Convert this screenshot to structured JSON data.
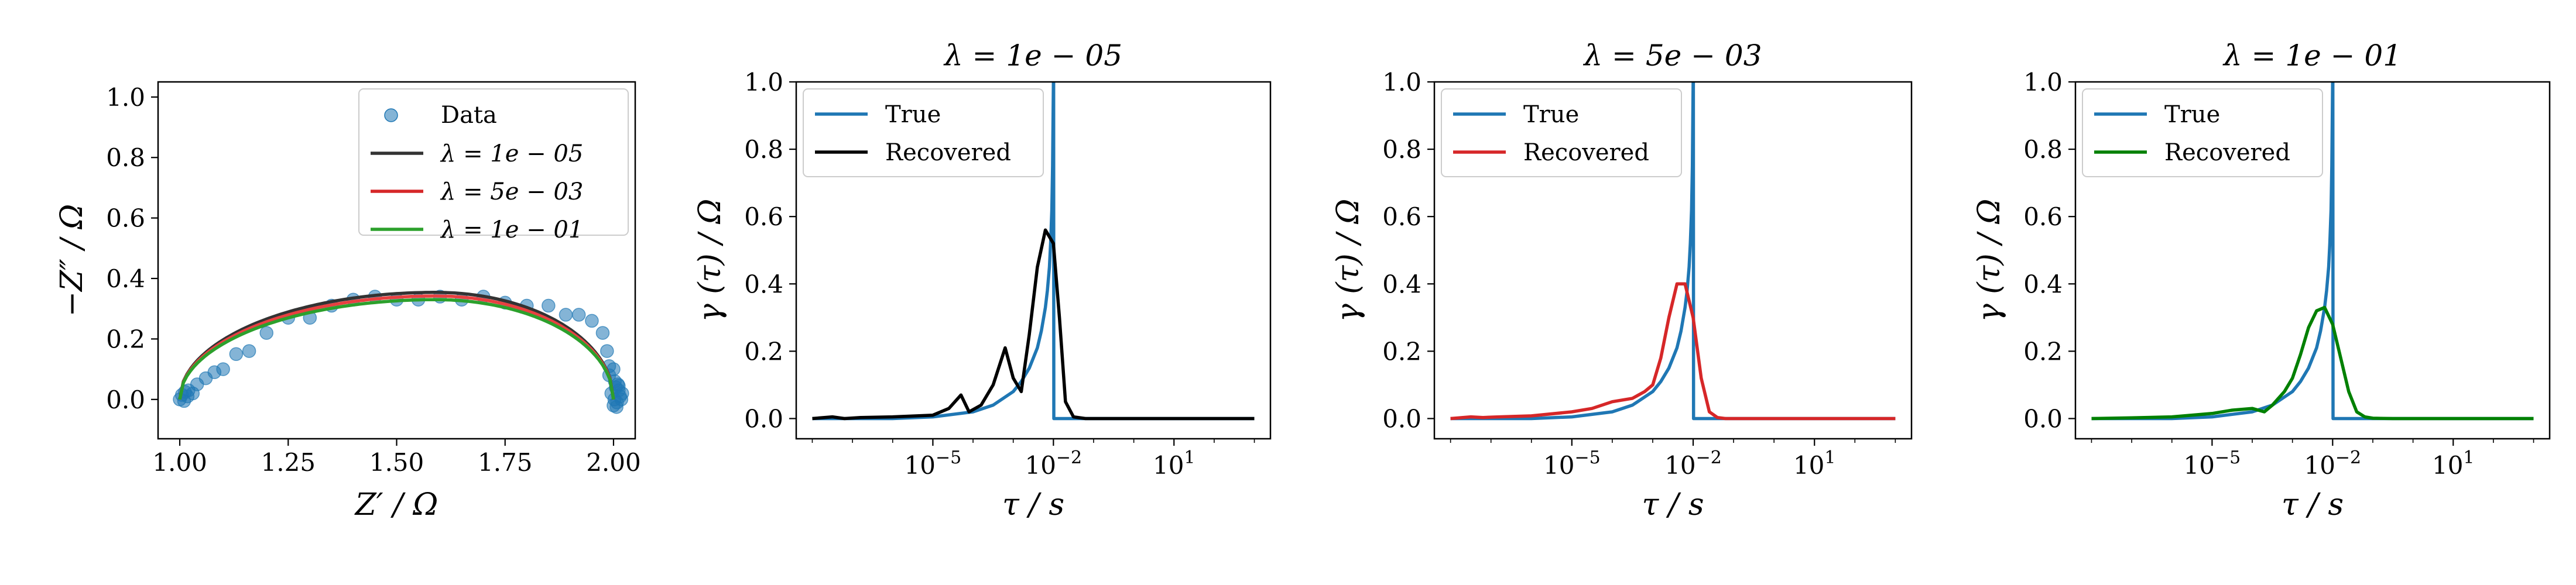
{
  "chart_data": [
    {
      "type": "scatter",
      "title": "",
      "xlabel": "Z′ / Ω",
      "ylabel": "−Z″ / Ω",
      "xlim": [
        0.95,
        2.05
      ],
      "ylim": [
        -0.13,
        1.05
      ],
      "xticks": [
        {
          "v": 1.0,
          "label": "1.00"
        },
        {
          "v": 1.25,
          "label": "1.25"
        },
        {
          "v": 1.5,
          "label": "1.50"
        },
        {
          "v": 1.75,
          "label": "1.75"
        },
        {
          "v": 2.0,
          "label": "2.00"
        }
      ],
      "yticks": [
        {
          "v": 0.0,
          "label": "0.0"
        },
        {
          "v": 0.2,
          "label": "0.2"
        },
        {
          "v": 0.4,
          "label": "0.4"
        },
        {
          "v": 0.6,
          "label": "0.6"
        },
        {
          "v": 0.8,
          "label": "0.8"
        },
        {
          "v": 1.0,
          "label": "1.0"
        }
      ],
      "legend_position": "top-right",
      "grid": false,
      "scatter": {
        "name": "Data",
        "color": "#1f77b4",
        "x": [
          1.0,
          1.005,
          1.01,
          1.012,
          1.018,
          1.02,
          1.03,
          1.04,
          1.06,
          1.08,
          1.1,
          1.13,
          1.16,
          1.2,
          1.25,
          1.3,
          1.35,
          1.4,
          1.45,
          1.5,
          1.55,
          1.6,
          1.65,
          1.7,
          1.75,
          1.8,
          1.85,
          1.89,
          1.92,
          1.95,
          1.975,
          1.985,
          1.99,
          1.995,
          2.0,
          2.002,
          2.005,
          2.008,
          2.01,
          2.012,
          2.015,
          2.018,
          2.02,
          2.0,
          1.99,
          2.003,
          2.007,
          2.012
        ],
        "y": [
          0.0,
          0.015,
          -0.005,
          0.025,
          0.01,
          0.03,
          0.02,
          0.05,
          0.07,
          0.09,
          0.1,
          0.15,
          0.16,
          0.22,
          0.27,
          0.27,
          0.31,
          0.33,
          0.34,
          0.33,
          0.33,
          0.34,
          0.33,
          0.34,
          0.32,
          0.31,
          0.31,
          0.28,
          0.28,
          0.26,
          0.22,
          0.16,
          0.08,
          0.02,
          -0.02,
          0.0,
          0.04,
          -0.01,
          0.05,
          0.03,
          0.01,
          0.0,
          0.02,
          0.1,
          0.11,
          0.06,
          -0.025,
          0.045
        ]
      },
      "series": [
        {
          "name": "λ = 1e − 05",
          "color": "#333333"
        },
        {
          "name": "λ = 5e − 03",
          "color": "#d62728"
        },
        {
          "name": "λ = 1e − 01",
          "color": "#2ca02c"
        }
      ],
      "fit_curves": [
        {
          "color": "#333333",
          "offset": 0.012
        },
        {
          "color": "#e84040",
          "offset": 0.0
        },
        {
          "color": "#2ca02c",
          "offset": -0.012
        }
      ],
      "semicircle": {
        "x_start": 1.0,
        "x_end": 2.0,
        "x_peak": 1.59,
        "peak": 0.342
      }
    },
    {
      "type": "line",
      "title": "λ = 1e − 05",
      "xlabel": "τ / s",
      "ylabel": "γ (τ) / Ω",
      "xscale": "log",
      "xlim_log10": [
        -8.4,
        3.4
      ],
      "ylim": [
        -0.06,
        1.0
      ],
      "xticks": [
        {
          "v": -5,
          "label": "10−5"
        },
        {
          "v": -2,
          "label": "10−2"
        },
        {
          "v": 1,
          "label": "101"
        }
      ],
      "yticks": [
        {
          "v": 0.0,
          "label": "0.0"
        },
        {
          "v": 0.2,
          "label": "0.2"
        },
        {
          "v": 0.4,
          "label": "0.4"
        },
        {
          "v": 0.6,
          "label": "0.6"
        },
        {
          "v": 0.8,
          "label": "0.8"
        },
        {
          "v": 1.0,
          "label": "1.0"
        }
      ],
      "legend_position": "top-left",
      "series": [
        {
          "name": "True",
          "color": "#1f77b4",
          "log10_x": [
            -8.0,
            -6.0,
            -5.0,
            -4.0,
            -3.5,
            -3.0,
            -2.8,
            -2.6,
            -2.4,
            -2.3,
            -2.2,
            -2.15,
            -2.1,
            -2.07,
            -2.04,
            -2.02,
            -2.0,
            -1.995,
            -1.99,
            -1.8,
            3.0
          ],
          "y": [
            0.0,
            0.0,
            0.005,
            0.02,
            0.04,
            0.08,
            0.11,
            0.15,
            0.21,
            0.26,
            0.33,
            0.38,
            0.45,
            0.52,
            0.62,
            0.75,
            1.0,
            1.0,
            0.0,
            0.0,
            0.0
          ]
        },
        {
          "name": "Recovered",
          "color": "#000000",
          "log10_x": [
            -8.0,
            -7.5,
            -7.2,
            -6.8,
            -6.0,
            -5.0,
            -4.6,
            -4.3,
            -4.1,
            -3.8,
            -3.5,
            -3.2,
            -3.0,
            -2.8,
            -2.6,
            -2.4,
            -2.2,
            -2.0,
            -1.85,
            -1.7,
            -1.5,
            -1.2,
            -1.0,
            0.0,
            3.0
          ],
          "y": [
            0.0,
            0.005,
            0.0,
            0.003,
            0.005,
            0.01,
            0.03,
            0.07,
            0.02,
            0.04,
            0.1,
            0.21,
            0.12,
            0.08,
            0.25,
            0.45,
            0.56,
            0.52,
            0.3,
            0.05,
            0.005,
            0.0,
            0.0,
            0.0,
            0.0
          ]
        }
      ]
    },
    {
      "type": "line",
      "title": "λ = 5e − 03",
      "xlabel": "τ / s",
      "ylabel": "γ (τ) / Ω",
      "xscale": "log",
      "xlim_log10": [
        -8.4,
        3.4
      ],
      "ylim": [
        -0.06,
        1.0
      ],
      "xticks": [
        {
          "v": -5,
          "label": "10−5"
        },
        {
          "v": -2,
          "label": "10−2"
        },
        {
          "v": 1,
          "label": "101"
        }
      ],
      "yticks": [
        {
          "v": 0.0,
          "label": "0.0"
        },
        {
          "v": 0.2,
          "label": "0.2"
        },
        {
          "v": 0.4,
          "label": "0.4"
        },
        {
          "v": 0.6,
          "label": "0.6"
        },
        {
          "v": 0.8,
          "label": "0.8"
        },
        {
          "v": 1.0,
          "label": "1.0"
        }
      ],
      "legend_position": "top-left",
      "series": [
        {
          "name": "True",
          "color": "#1f77b4",
          "log10_x": [
            -8.0,
            -6.0,
            -5.0,
            -4.0,
            -3.5,
            -3.0,
            -2.8,
            -2.6,
            -2.4,
            -2.3,
            -2.2,
            -2.15,
            -2.1,
            -2.07,
            -2.04,
            -2.02,
            -2.0,
            -1.995,
            -1.99,
            -1.8,
            3.0
          ],
          "y": [
            0.0,
            0.0,
            0.005,
            0.02,
            0.04,
            0.08,
            0.11,
            0.15,
            0.21,
            0.26,
            0.33,
            0.38,
            0.45,
            0.52,
            0.62,
            0.75,
            1.0,
            1.0,
            0.0,
            0.0,
            0.0
          ]
        },
        {
          "name": "Recovered",
          "color": "#d62728",
          "log10_x": [
            -8.0,
            -7.5,
            -7.2,
            -6.8,
            -6.0,
            -5.0,
            -4.5,
            -4.0,
            -3.5,
            -3.2,
            -3.0,
            -2.8,
            -2.6,
            -2.4,
            -2.2,
            -2.0,
            -1.8,
            -1.6,
            -1.4,
            -1.2,
            -1.0,
            0.0,
            3.0
          ],
          "y": [
            0.0,
            0.005,
            0.003,
            0.005,
            0.008,
            0.02,
            0.03,
            0.05,
            0.06,
            0.08,
            0.1,
            0.18,
            0.3,
            0.4,
            0.4,
            0.3,
            0.12,
            0.02,
            0.003,
            0.0,
            0.0,
            0.0,
            0.0
          ]
        }
      ]
    },
    {
      "type": "line",
      "title": "λ = 1e − 01",
      "xlabel": "τ / s",
      "ylabel": "γ (τ) / Ω",
      "xscale": "log",
      "xlim_log10": [
        -8.4,
        3.4
      ],
      "ylim": [
        -0.06,
        1.0
      ],
      "xticks": [
        {
          "v": -5,
          "label": "10−5"
        },
        {
          "v": -2,
          "label": "10−2"
        },
        {
          "v": 1,
          "label": "101"
        }
      ],
      "yticks": [
        {
          "v": 0.0,
          "label": "0.0"
        },
        {
          "v": 0.2,
          "label": "0.2"
        },
        {
          "v": 0.4,
          "label": "0.4"
        },
        {
          "v": 0.6,
          "label": "0.6"
        },
        {
          "v": 0.8,
          "label": "0.8"
        },
        {
          "v": 1.0,
          "label": "1.0"
        }
      ],
      "legend_position": "top-left",
      "series": [
        {
          "name": "True",
          "color": "#1f77b4",
          "log10_x": [
            -8.0,
            -6.0,
            -5.0,
            -4.0,
            -3.5,
            -3.0,
            -2.8,
            -2.6,
            -2.4,
            -2.3,
            -2.2,
            -2.15,
            -2.1,
            -2.07,
            -2.04,
            -2.02,
            -2.0,
            -1.995,
            -1.99,
            -1.8,
            3.0
          ],
          "y": [
            0.0,
            0.0,
            0.005,
            0.02,
            0.04,
            0.08,
            0.11,
            0.15,
            0.21,
            0.26,
            0.33,
            0.38,
            0.45,
            0.52,
            0.62,
            0.75,
            1.0,
            1.0,
            0.0,
            0.0,
            0.0
          ]
        },
        {
          "name": "Recovered",
          "color": "#008000",
          "log10_x": [
            -8.0,
            -7.0,
            -6.0,
            -5.0,
            -4.5,
            -4.0,
            -3.7,
            -3.5,
            -3.2,
            -3.0,
            -2.8,
            -2.6,
            -2.4,
            -2.2,
            -2.0,
            -1.8,
            -1.6,
            -1.4,
            -1.2,
            -1.0,
            -0.5,
            0.0,
            3.0
          ],
          "y": [
            0.0,
            0.002,
            0.005,
            0.015,
            0.025,
            0.03,
            0.02,
            0.04,
            0.08,
            0.12,
            0.19,
            0.27,
            0.32,
            0.33,
            0.28,
            0.18,
            0.08,
            0.02,
            0.005,
            0.001,
            0.0,
            0.0,
            0.0
          ]
        }
      ]
    }
  ]
}
